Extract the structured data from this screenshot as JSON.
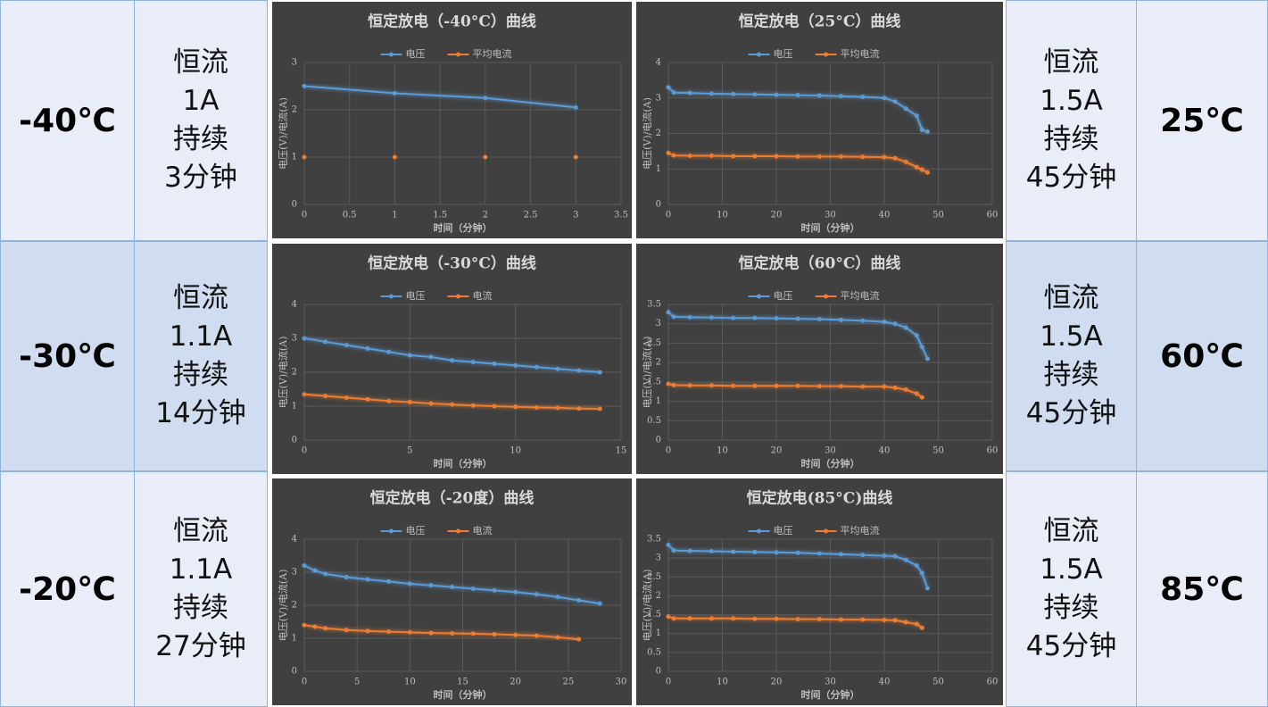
{
  "chart_data": [
    {
      "type": "line",
      "title": "恒定放电（-40°C）曲线",
      "x_label": "时间（分钟）",
      "y_label": "电压(V)/电流(A)",
      "x": [
        0,
        1,
        2,
        3
      ],
      "series": [
        {
          "name": "电压",
          "color": "#5b9bd5",
          "values": [
            2.5,
            2.35,
            2.25,
            2.05
          ]
        },
        {
          "name": "平均电流",
          "color": "#ed7d31",
          "values": [
            1,
            1,
            1,
            1
          ]
        }
      ],
      "xlim": [
        0,
        3.5
      ],
      "xticks": [
        0,
        0.5,
        1,
        1.5,
        2,
        2.5,
        3,
        3.5
      ],
      "ylim": [
        0,
        3
      ],
      "yticks": [
        0,
        1,
        2,
        3
      ],
      "grid": true
    },
    {
      "type": "line",
      "title": "恒定放电（25°C）曲线",
      "x_label": "时间（分钟）",
      "y_label": "电压(V)/电流(A)",
      "x": [
        0,
        1,
        4,
        8,
        12,
        16,
        20,
        24,
        28,
        32,
        36,
        40,
        42,
        44,
        46,
        47,
        48
      ],
      "series": [
        {
          "name": "电压",
          "color": "#5b9bd5",
          "values": [
            3.3,
            3.15,
            3.14,
            3.12,
            3.11,
            3.1,
            3.09,
            3.08,
            3.07,
            3.05,
            3.03,
            3.0,
            2.9,
            2.7,
            2.5,
            2.1,
            2.05
          ]
        },
        {
          "name": "平均电流",
          "color": "#ed7d31",
          "values": [
            1.45,
            1.38,
            1.37,
            1.37,
            1.36,
            1.36,
            1.36,
            1.35,
            1.35,
            1.35,
            1.34,
            1.33,
            1.3,
            1.2,
            1.05,
            0.98,
            0.9
          ]
        }
      ],
      "xlim": [
        0,
        60
      ],
      "xticks": [
        0,
        10,
        20,
        30,
        40,
        50,
        60
      ],
      "ylim": [
        0,
        4
      ],
      "yticks": [
        0,
        1,
        2,
        3,
        4
      ],
      "grid": true
    },
    {
      "type": "line",
      "title": "恒定放电（-30°C）曲线",
      "x_label": "时间（分钟）",
      "y_label": "电压(V)/电流(A)",
      "x": [
        0,
        1,
        2,
        3,
        4,
        5,
        6,
        7,
        8,
        9,
        10,
        11,
        12,
        13,
        14
      ],
      "series": [
        {
          "name": "电压",
          "color": "#5b9bd5",
          "values": [
            3.0,
            2.9,
            2.8,
            2.7,
            2.6,
            2.5,
            2.45,
            2.35,
            2.3,
            2.25,
            2.2,
            2.15,
            2.1,
            2.05,
            2.0
          ]
        },
        {
          "name": "电流",
          "color": "#ed7d31",
          "values": [
            1.35,
            1.3,
            1.25,
            1.2,
            1.15,
            1.12,
            1.08,
            1.05,
            1.02,
            1.0,
            0.98,
            0.96,
            0.95,
            0.93,
            0.92
          ]
        }
      ],
      "xlim": [
        0,
        15
      ],
      "xticks": [
        0,
        5,
        10,
        15
      ],
      "ylim": [
        0,
        4
      ],
      "yticks": [
        0,
        1,
        2,
        3,
        4
      ],
      "grid": true
    },
    {
      "type": "line",
      "title": "恒定放电（60°C）曲线",
      "x_label": "时间（分钟）",
      "y_label": "电压(V)/电流(A)",
      "x": [
        0,
        1,
        4,
        8,
        12,
        16,
        20,
        24,
        28,
        32,
        36,
        40,
        42,
        44,
        46,
        47,
        48
      ],
      "series": [
        {
          "name": "电压",
          "color": "#5b9bd5",
          "values": [
            3.3,
            3.18,
            3.17,
            3.16,
            3.15,
            3.15,
            3.14,
            3.13,
            3.12,
            3.1,
            3.08,
            3.05,
            3.0,
            2.9,
            2.7,
            2.4,
            2.1
          ]
        },
        {
          "name": "平均电流",
          "color": "#ed7d31",
          "values": [
            1.45,
            1.42,
            1.41,
            1.41,
            1.4,
            1.4,
            1.4,
            1.4,
            1.39,
            1.39,
            1.38,
            1.38,
            1.35,
            1.3,
            1.2,
            1.1,
            null
          ]
        }
      ],
      "xlim": [
        0,
        60
      ],
      "xticks": [
        0,
        10,
        20,
        30,
        40,
        50,
        60
      ],
      "ylim": [
        0,
        3.5
      ],
      "yticks": [
        0,
        0.5,
        1,
        1.5,
        2,
        2.5,
        3,
        3.5
      ],
      "grid": true
    },
    {
      "type": "line",
      "title": "恒定放电（-20度）曲线",
      "x_label": "时间（分钟）",
      "y_label": "电压(V)/电流(A)",
      "x": [
        0,
        1,
        2,
        4,
        6,
        8,
        10,
        12,
        14,
        16,
        18,
        20,
        22,
        24,
        26,
        28
      ],
      "series": [
        {
          "name": "电压",
          "color": "#5b9bd5",
          "values": [
            3.2,
            3.05,
            2.95,
            2.85,
            2.78,
            2.72,
            2.65,
            2.6,
            2.55,
            2.5,
            2.45,
            2.4,
            2.33,
            2.25,
            2.15,
            2.05
          ]
        },
        {
          "name": "电流",
          "color": "#ed7d31",
          "values": [
            1.4,
            1.35,
            1.3,
            1.25,
            1.22,
            1.2,
            1.18,
            1.16,
            1.15,
            1.14,
            1.12,
            1.1,
            1.08,
            1.03,
            0.97,
            null
          ]
        }
      ],
      "xlim": [
        0,
        30
      ],
      "xticks": [
        0,
        5,
        10,
        15,
        20,
        25,
        30
      ],
      "ylim": [
        0,
        4
      ],
      "yticks": [
        0,
        1,
        2,
        3,
        4
      ],
      "grid": true
    },
    {
      "type": "line",
      "title": "恒定放电(85°C)曲线",
      "x_label": "时间（分钟）",
      "y_label": "电压(V)/电流(A)",
      "x": [
        0,
        1,
        4,
        8,
        12,
        16,
        20,
        24,
        28,
        32,
        36,
        40,
        42,
        44,
        46,
        47,
        48
      ],
      "series": [
        {
          "name": "电压",
          "color": "#5b9bd5",
          "values": [
            3.35,
            3.2,
            3.19,
            3.18,
            3.17,
            3.16,
            3.15,
            3.14,
            3.12,
            3.1,
            3.08,
            3.06,
            3.05,
            2.95,
            2.8,
            2.6,
            2.2
          ]
        },
        {
          "name": "平均电流",
          "color": "#ed7d31",
          "values": [
            1.45,
            1.4,
            1.4,
            1.4,
            1.4,
            1.39,
            1.39,
            1.38,
            1.38,
            1.37,
            1.37,
            1.36,
            1.35,
            1.3,
            1.25,
            1.15,
            null
          ]
        }
      ],
      "xlim": [
        0,
        60
      ],
      "xticks": [
        0,
        10,
        20,
        30,
        40,
        50,
        60
      ],
      "ylim": [
        0,
        3.5
      ],
      "yticks": [
        0,
        0.5,
        1,
        1.5,
        2,
        2.5,
        3,
        3.5
      ],
      "grid": true
    }
  ],
  "left_rows": [
    {
      "temp": "-40℃",
      "desc": [
        "恒流",
        "1A",
        "持续",
        "3分钟"
      ]
    },
    {
      "temp": "-30℃",
      "desc": [
        "恒流",
        "1.1A",
        "持续",
        "14分钟"
      ]
    },
    {
      "temp": "-20℃",
      "desc": [
        "恒流",
        "1.1A",
        "持续",
        "27分钟"
      ]
    }
  ],
  "right_rows": [
    {
      "temp": "25℃",
      "desc": [
        "恒流",
        "1.5A",
        "持续",
        "45分钟"
      ]
    },
    {
      "temp": "60℃",
      "desc": [
        "恒流",
        "1.5A",
        "持续",
        "45分钟"
      ]
    },
    {
      "temp": "85℃",
      "desc": [
        "恒流",
        "1.5A",
        "持续",
        "45分钟"
      ]
    }
  ]
}
